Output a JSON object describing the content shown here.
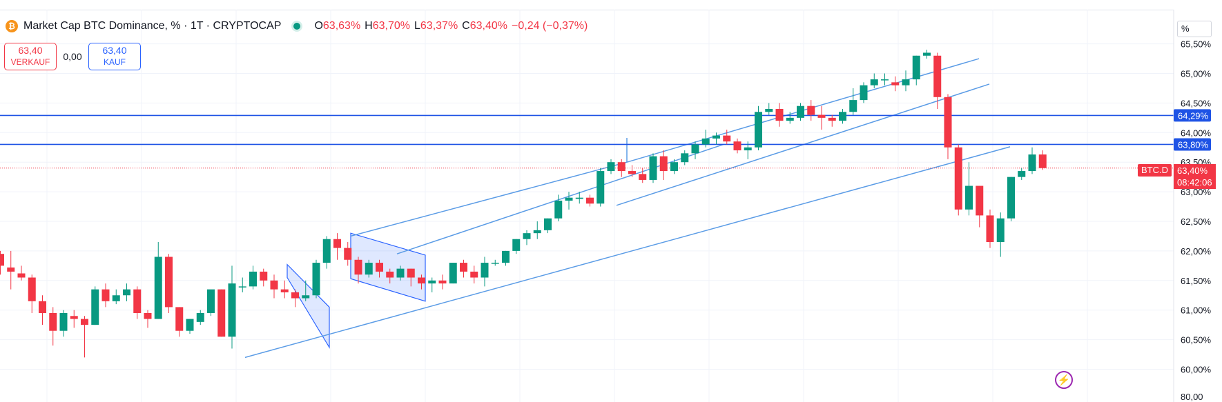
{
  "legend": {
    "title": "Market Cap BTC Dominance, % · 1T · CRYPTOCAP",
    "open_label": "O",
    "open": "63,63%",
    "high_label": "H",
    "high": "63,70%",
    "low_label": "L",
    "low": "63,37%",
    "close_label": "C",
    "close": "63,40%",
    "change": "−0,24 (−0,37%)"
  },
  "trade": {
    "sell_price": "63,40",
    "sell_label": "VERKAUF",
    "spread": "0,00",
    "buy_price": "63,40",
    "buy_label": "KAUF"
  },
  "scale_unit": "%",
  "current": {
    "symbol": "BTC.D",
    "price": "63,40%",
    "countdown": "08:42:06"
  },
  "colors": {
    "up": "#089981",
    "down": "#f23645",
    "line": "#1e53e5",
    "drawing": "#5b9ce6",
    "price_tag": "#f23645",
    "level_tag": "#1e53e5"
  },
  "chart_data": {
    "type": "candlestick",
    "y_axis_ticks": [
      "65,50%",
      "65,00%",
      "64,50%",
      "64,00%",
      "63,50%",
      "63,00%",
      "62,50%",
      "62,00%",
      "61,50%",
      "61,00%",
      "60,50%",
      "60,00%"
    ],
    "ylim": [
      59.85,
      65.65
    ],
    "y_axis_bottom_label": "80,00",
    "horizontal_levels": [
      {
        "value": 64.29,
        "label": "64,29%"
      },
      {
        "value": 63.8,
        "label": "63,80%"
      }
    ],
    "last_price": 63.4,
    "candles": [
      [
        61.95,
        62.0,
        61.6,
        61.75
      ],
      [
        61.72,
        62.0,
        61.35,
        61.65
      ],
      [
        61.62,
        61.75,
        61.5,
        61.55
      ],
      [
        61.55,
        61.6,
        60.95,
        61.15
      ],
      [
        61.15,
        61.25,
        60.75,
        60.95
      ],
      [
        60.95,
        61.05,
        60.4,
        60.65
      ],
      [
        60.65,
        61.0,
        60.55,
        60.95
      ],
      [
        60.9,
        61.0,
        60.7,
        60.85
      ],
      [
        60.85,
        60.9,
        60.2,
        60.75
      ],
      [
        60.75,
        61.4,
        60.75,
        61.35
      ],
      [
        61.35,
        61.45,
        61.05,
        61.15
      ],
      [
        61.15,
        61.35,
        61.1,
        61.25
      ],
      [
        61.25,
        61.45,
        61.15,
        61.35
      ],
      [
        61.35,
        61.4,
        60.85,
        60.95
      ],
      [
        60.95,
        61.0,
        60.7,
        60.85
      ],
      [
        60.85,
        62.15,
        60.85,
        61.9
      ],
      [
        61.9,
        61.95,
        60.95,
        61.05
      ],
      [
        61.05,
        61.05,
        60.55,
        60.65
      ],
      [
        60.65,
        60.85,
        60.6,
        60.85
      ],
      [
        60.8,
        61.0,
        60.75,
        60.95
      ],
      [
        60.95,
        61.3,
        60.9,
        61.35
      ],
      [
        61.35,
        61.35,
        60.55,
        60.55
      ],
      [
        60.55,
        61.75,
        60.35,
        61.45
      ],
      [
        61.4,
        61.55,
        61.3,
        61.4
      ],
      [
        61.4,
        61.75,
        61.35,
        61.65
      ],
      [
        61.65,
        61.7,
        61.4,
        61.5
      ],
      [
        61.5,
        61.6,
        61.2,
        61.35
      ],
      [
        61.35,
        61.5,
        61.2,
        61.3
      ],
      [
        61.3,
        61.35,
        61.05,
        61.2
      ],
      [
        61.2,
        61.5,
        61.15,
        61.25
      ],
      [
        61.25,
        61.85,
        61.2,
        61.8
      ],
      [
        61.8,
        62.25,
        61.7,
        62.2
      ],
      [
        62.2,
        62.3,
        61.85,
        62.05
      ],
      [
        62.05,
        62.15,
        61.75,
        61.85
      ],
      [
        61.85,
        61.9,
        61.45,
        61.6
      ],
      [
        61.6,
        61.85,
        61.55,
        61.8
      ],
      [
        61.8,
        61.85,
        61.55,
        61.65
      ],
      [
        61.65,
        61.7,
        61.45,
        61.55
      ],
      [
        61.55,
        61.75,
        61.5,
        61.7
      ],
      [
        61.7,
        61.7,
        61.4,
        61.55
      ],
      [
        61.55,
        61.6,
        61.35,
        61.45
      ],
      [
        61.45,
        61.55,
        61.3,
        61.5
      ],
      [
        61.5,
        61.6,
        61.35,
        61.45
      ],
      [
        61.45,
        61.8,
        61.45,
        61.8
      ],
      [
        61.8,
        61.85,
        61.55,
        61.65
      ],
      [
        61.65,
        61.75,
        61.45,
        61.55
      ],
      [
        61.55,
        61.9,
        61.4,
        61.8
      ],
      [
        61.8,
        61.85,
        61.75,
        61.8
      ],
      [
        61.8,
        62.0,
        61.75,
        62.0
      ],
      [
        62.0,
        62.2,
        61.95,
        62.2
      ],
      [
        62.2,
        62.35,
        62.1,
        62.3
      ],
      [
        62.3,
        62.5,
        62.2,
        62.35
      ],
      [
        62.35,
        62.55,
        62.3,
        62.55
      ],
      [
        62.55,
        62.95,
        62.5,
        62.85
      ],
      [
        62.85,
        63.0,
        62.7,
        62.9
      ],
      [
        62.88,
        63.0,
        62.8,
        62.9
      ],
      [
        62.9,
        62.95,
        62.75,
        62.8
      ],
      [
        62.8,
        63.4,
        62.75,
        63.35
      ],
      [
        63.35,
        63.55,
        63.3,
        63.5
      ],
      [
        63.5,
        63.55,
        63.25,
        63.35
      ],
      [
        63.35,
        63.45,
        63.25,
        63.3
      ],
      [
        63.3,
        63.4,
        63.15,
        63.2
      ],
      [
        63.2,
        63.65,
        63.15,
        63.6
      ],
      [
        63.6,
        63.7,
        63.2,
        63.35
      ],
      [
        63.35,
        63.55,
        63.3,
        63.5
      ],
      [
        63.5,
        63.7,
        63.45,
        63.65
      ],
      [
        63.65,
        63.85,
        63.55,
        63.8
      ],
      [
        63.8,
        64.05,
        63.75,
        63.9
      ],
      [
        63.9,
        64.0,
        63.8,
        63.95
      ],
      [
        63.95,
        64.05,
        63.8,
        63.85
      ],
      [
        63.85,
        63.9,
        63.65,
        63.7
      ],
      [
        63.7,
        63.85,
        63.55,
        63.75
      ],
      [
        63.75,
        64.45,
        63.7,
        64.35
      ],
      [
        64.35,
        64.5,
        64.3,
        64.4
      ],
      [
        64.4,
        64.5,
        64.1,
        64.2
      ],
      [
        64.2,
        64.35,
        64.15,
        64.25
      ],
      [
        64.25,
        64.5,
        64.2,
        64.45
      ],
      [
        64.45,
        64.55,
        64.2,
        64.3
      ],
      [
        64.3,
        64.45,
        64.05,
        64.25
      ],
      [
        64.25,
        64.3,
        64.1,
        64.2
      ],
      [
        64.2,
        64.4,
        64.15,
        64.35
      ],
      [
        64.35,
        64.75,
        64.3,
        64.55
      ],
      [
        64.55,
        64.85,
        64.5,
        64.8
      ],
      [
        64.8,
        65.0,
        64.75,
        64.9
      ],
      [
        64.9,
        65.0,
        64.8,
        64.9
      ],
      [
        64.85,
        64.95,
        64.7,
        64.8
      ],
      [
        64.8,
        65.05,
        64.7,
        64.9
      ],
      [
        64.9,
        65.3,
        64.8,
        65.3
      ],
      [
        65.3,
        65.4,
        65.25,
        65.35
      ],
      [
        65.3,
        65.35,
        64.4,
        64.6
      ],
      [
        64.6,
        64.65,
        63.55,
        63.75
      ],
      [
        63.75,
        63.8,
        62.6,
        62.7
      ],
      [
        62.7,
        63.5,
        62.6,
        63.1
      ],
      [
        63.1,
        63.1,
        62.4,
        62.6
      ],
      [
        62.6,
        62.7,
        62.05,
        62.15
      ],
      [
        62.15,
        62.65,
        61.9,
        62.55
      ],
      [
        62.55,
        63.25,
        62.5,
        63.25
      ],
      [
        63.25,
        63.4,
        63.2,
        63.35
      ],
      [
        63.35,
        63.75,
        63.3,
        63.63
      ],
      [
        63.63,
        63.7,
        63.37,
        63.4
      ]
    ]
  }
}
